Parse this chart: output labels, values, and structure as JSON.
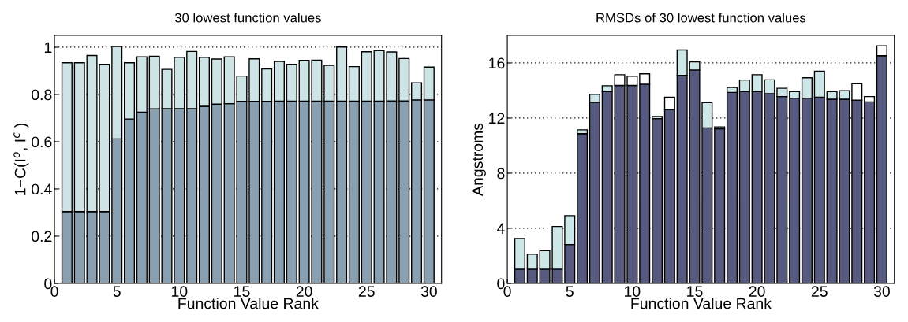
{
  "chart_data": [
    {
      "type": "bar",
      "stacked": true,
      "title": "30 lowest function values",
      "xlabel": "Function Value Rank",
      "ylabel": "1−C(I$^{o}$, I$^{c}$ )",
      "x": [
        1,
        2,
        3,
        4,
        5,
        6,
        7,
        8,
        9,
        10,
        11,
        12,
        13,
        14,
        15,
        16,
        17,
        18,
        19,
        20,
        21,
        22,
        23,
        24,
        25,
        26,
        27,
        28,
        29,
        30
      ],
      "series": [
        {
          "color": "#8aa0b0",
          "values": [
            0.304,
            0.304,
            0.304,
            0.304,
            0.612,
            0.696,
            0.725,
            0.739,
            0.74,
            0.74,
            0.74,
            0.75,
            0.759,
            0.761,
            0.771,
            0.771,
            0.771,
            0.772,
            0.772,
            0.772,
            0.772,
            0.772,
            0.772,
            0.772,
            0.772,
            0.772,
            0.773,
            0.773,
            0.777,
            0.777
          ]
        },
        {
          "color": "#cde3e6",
          "values": [
            0.63,
            0.63,
            0.661,
            0.624,
            0.391,
            0.238,
            0.234,
            0.223,
            0.166,
            0.217,
            0.242,
            0.207,
            0.191,
            0.198,
            0.107,
            0.18,
            0.137,
            0.168,
            0.156,
            0.172,
            0.173,
            0.151,
            0.229,
            0.146,
            0.209,
            0.214,
            0.207,
            0.179,
            0.072,
            0.139
          ]
        }
      ],
      "xlim": [
        0,
        31
      ],
      "xticks": [
        0,
        5,
        10,
        15,
        20,
        25,
        30
      ],
      "ylim": [
        0,
        1.05
      ],
      "yticks": [
        0,
        0.2,
        0.4,
        0.6,
        0.8,
        1
      ],
      "grid": "y"
    },
    {
      "type": "bar",
      "stacked": true,
      "title": "RMSDs of 30 lowest function values",
      "xlabel": "Function Value Rank",
      "ylabel": "Angstroms",
      "x": [
        1,
        2,
        3,
        4,
        5,
        6,
        7,
        8,
        9,
        10,
        11,
        12,
        13,
        14,
        15,
        16,
        17,
        18,
        19,
        20,
        21,
        22,
        23,
        24,
        25,
        26,
        27,
        28,
        29,
        30
      ],
      "series": [
        {
          "color": "#565a7e",
          "values": [
            1.03,
            1.03,
            1.03,
            1.03,
            2.82,
            10.87,
            13.15,
            13.93,
            14.37,
            14.37,
            14.46,
            11.96,
            12.62,
            15.1,
            15.49,
            11.29,
            11.23,
            13.86,
            13.92,
            13.92,
            13.77,
            13.56,
            13.45,
            13.45,
            13.52,
            13.37,
            13.37,
            13.3,
            13.18,
            16.53
          ]
        },
        {
          "color": "#cde6e8",
          "values": [
            2.22,
            1.09,
            1.35,
            3.1,
            2.1,
            0.28,
            0.58,
            0.42,
            null,
            null,
            null,
            0.15,
            null,
            1.84,
            0.59,
            1.84,
            0.13,
            0.36,
            0.84,
            1.23,
            1.01,
            0.6,
            0.47,
            1.48,
            1.88,
            0.55,
            0.62,
            null,
            null,
            null
          ]
        },
        {
          "color": "#ffffff",
          "values": [
            null,
            null,
            null,
            null,
            null,
            null,
            null,
            null,
            0.78,
            0.67,
            0.75,
            null,
            0.9,
            null,
            null,
            null,
            null,
            null,
            null,
            null,
            null,
            null,
            null,
            null,
            null,
            null,
            null,
            1.2,
            0.38,
            0.71
          ]
        }
      ],
      "xlim": [
        0,
        31
      ],
      "xticks": [
        0,
        5,
        10,
        15,
        20,
        25,
        30
      ],
      "ylim": [
        0,
        18
      ],
      "yticks": [
        0,
        4,
        8,
        12,
        16
      ],
      "grid": "y"
    }
  ]
}
